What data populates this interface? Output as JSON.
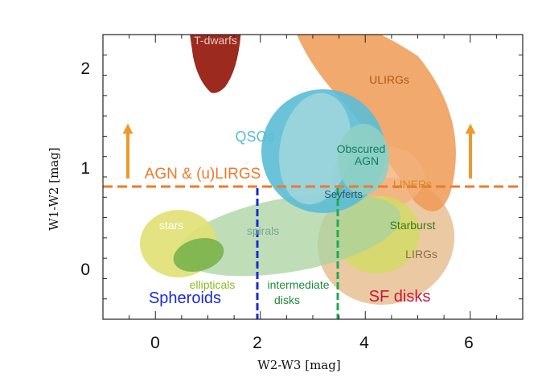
{
  "chart_data": {
    "type": "scatter",
    "xlabel": "W2-W3 [mag]",
    "ylabel": "W1-W2 [mag]",
    "xlim": [
      -1,
      7
    ],
    "ylim": [
      -0.5,
      2.3
    ],
    "x_ticks": [
      "0",
      "2",
      "4",
      "6"
    ],
    "y_ticks": [
      "0",
      "1",
      "2"
    ],
    "threshold_line": {
      "y": 0.8,
      "label": "AGN & (u)LIRGS",
      "color": "#f07a2a",
      "style": "dashed"
    },
    "vertical_lines": [
      {
        "x": 2.0,
        "color": "#1a2bd6",
        "style": "dashed"
      },
      {
        "x": 3.5,
        "color": "#1faa55",
        "style": "dashed"
      }
    ],
    "arrows": [
      {
        "x": -0.5,
        "y_from": 0.9,
        "y_to": 1.5,
        "direction": "up",
        "color": "#f0982a"
      },
      {
        "x": 6.0,
        "y_from": 0.9,
        "y_to": 1.5,
        "direction": "up",
        "color": "#f0982a"
      }
    ],
    "regions": [
      {
        "label": "T-dwarfs",
        "color": "#9c2a1e",
        "label_color": "#e8c8c0"
      },
      {
        "label": "ULIRGs",
        "color": "#ee9a55",
        "label_color": "#b05a14"
      },
      {
        "label": "QSOs",
        "color": "#5bbcd6",
        "label_color": "#5bbcd6"
      },
      {
        "label": "Obscured AGN",
        "color": "#8fd0c4",
        "label_color": "#137a5e"
      },
      {
        "label": "LINERs",
        "color": "#f2b27a",
        "label_color": "#d38a2a"
      },
      {
        "label": "Seyferts",
        "color": "#8ec4c8",
        "label_color": "#2f5a62"
      },
      {
        "label": "Starburst",
        "color": "#d4db66",
        "label_color": "#3a7a1a"
      },
      {
        "label": "LIRGs",
        "color": "#e8c093",
        "label_color": "#8a6a4a"
      },
      {
        "label": "stars",
        "color": "#e0e074",
        "label_color": "#ffffff"
      },
      {
        "label": "spirals",
        "color": "#a9d3a0",
        "label_color": "#7aa69a"
      },
      {
        "label": "ellipticals",
        "color": "#79b24c",
        "label_color": "#8abb20"
      },
      {
        "label": "intermediate disks",
        "color": "#a9d3a0",
        "label_color": "#1f8a3a"
      },
      {
        "label": "Spheroids",
        "color": "#1a2bd6",
        "label_color": "#1a2bd6"
      },
      {
        "label": "SF disks",
        "color": "#e8c093",
        "label_color": "#c41a3a"
      }
    ]
  }
}
